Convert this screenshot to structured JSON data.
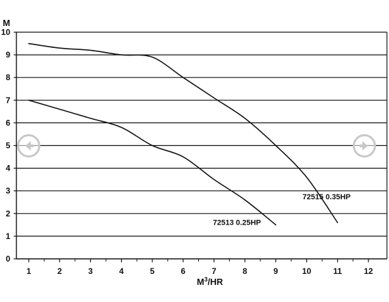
{
  "chart_data": {
    "type": "line",
    "ylabel": "M",
    "xlabel_base": "M",
    "xlabel_sup": "3",
    "xlabel_rest": "/HR",
    "xlim": [
      0.6,
      12.6
    ],
    "ylim": [
      0,
      10
    ],
    "x_ticks": [
      1,
      2,
      3,
      4,
      5,
      6,
      7,
      8,
      9,
      10,
      11,
      12
    ],
    "y_ticks": [
      0,
      1,
      2,
      3,
      4,
      5,
      6,
      7,
      8,
      9,
      10
    ],
    "grid": "horizontal",
    "series": [
      {
        "name": "72513 0.25HP",
        "x": [
          1,
          2,
          3,
          4,
          5,
          6,
          7,
          8,
          9
        ],
        "y": [
          7.0,
          6.6,
          6.2,
          5.8,
          5.0,
          4.5,
          3.5,
          2.6,
          1.5
        ]
      },
      {
        "name": "72515 0.35HP",
        "x": [
          1,
          2,
          3,
          4,
          5,
          6,
          7,
          8,
          9,
          10,
          11
        ],
        "y": [
          9.5,
          9.3,
          9.2,
          9.0,
          8.9,
          8.0,
          7.1,
          6.2,
          5.0,
          3.6,
          1.6
        ]
      }
    ]
  },
  "ui": {
    "prev_icon": "chevron-left-icon",
    "next_icon": "chevron-right-icon",
    "nav_color": "#c8c8c8"
  }
}
